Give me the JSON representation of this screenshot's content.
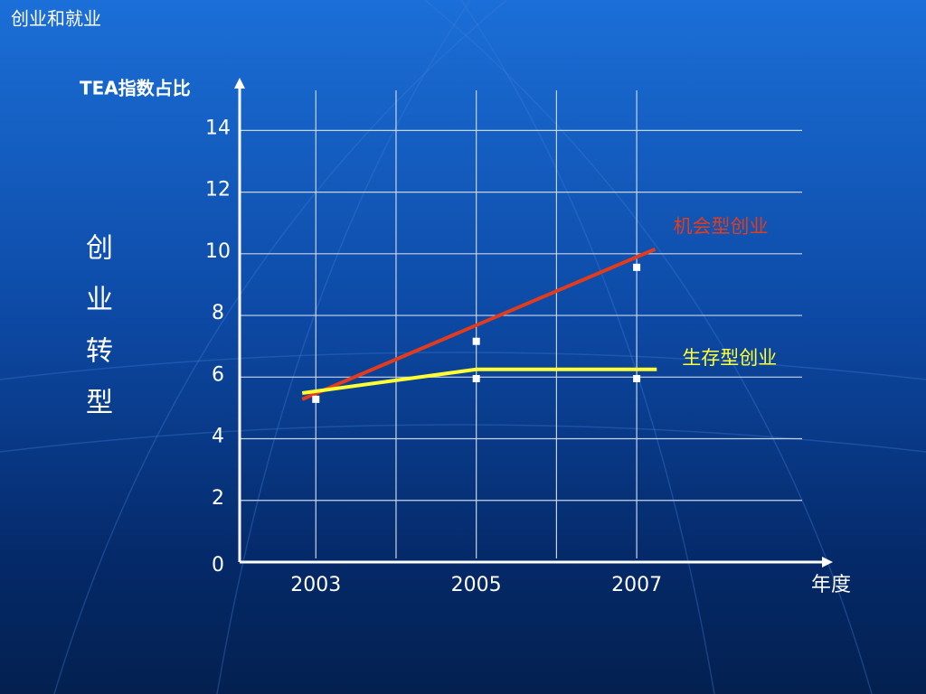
{
  "chart_data": {
    "type": "line",
    "title": "创业和就业",
    "y_label": "TEA指数占比",
    "side_label": "创业转型",
    "x_label": "年度",
    "xlim": [
      2002.05,
      2009.4
    ],
    "xticks": [
      2003,
      2005,
      2007
    ],
    "xgrid": [
      2003,
      2004,
      2005,
      2006,
      2007
    ],
    "ylim": [
      0,
      15.3
    ],
    "yticks": [
      0,
      2,
      4,
      6,
      8,
      10,
      12,
      14
    ],
    "grid": true,
    "series": [
      {
        "name": "机会型创业",
        "color": "#e23c1c",
        "x": [
          2002.83,
          2007.23
        ],
        "values": [
          5.28,
          10.15
        ],
        "points_x": [
          2003,
          2005,
          2007
        ],
        "points": [
          5.28,
          7.16,
          9.56
        ]
      },
      {
        "name": "生存型创业",
        "color": "#ffff33",
        "x": [
          2002.83,
          2005,
          2007.25
        ],
        "values": [
          5.48,
          6.25,
          6.25
        ],
        "points_x": [
          2005,
          2007
        ],
        "points": [
          5.95,
          5.95
        ]
      }
    ]
  }
}
